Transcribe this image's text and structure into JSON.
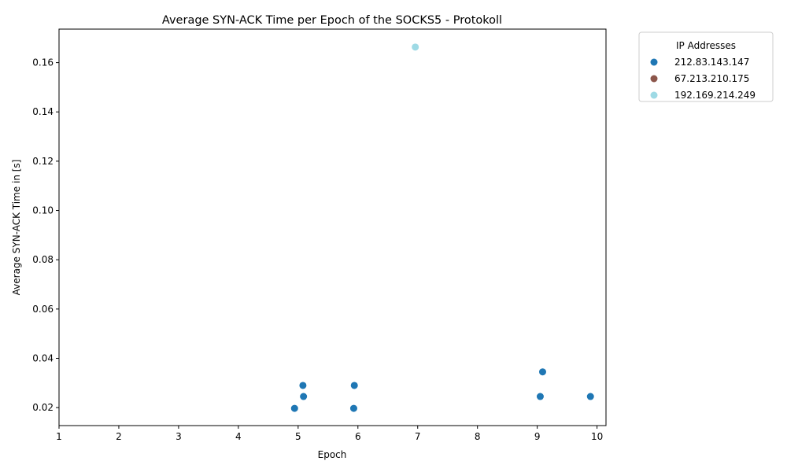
{
  "chart_data": {
    "type": "scatter",
    "title": "Average SYN-ACK Time per Epoch of the SOCKS5 - Protokoll",
    "xlabel": "Epoch",
    "ylabel": "Average SYN-ACK Time in [s]",
    "xlim": [
      1,
      10.15
    ],
    "ylim": [
      0.0127,
      0.1736
    ],
    "xticks": [
      1,
      2,
      3,
      4,
      5,
      6,
      7,
      8,
      9,
      10
    ],
    "yticks": [
      0.02,
      0.04,
      0.06,
      0.08,
      0.1,
      0.12,
      0.14,
      0.16
    ],
    "ytick_labels": [
      "0.02",
      "0.04",
      "0.06",
      "0.08",
      "0.10",
      "0.12",
      "0.14",
      "0.16"
    ],
    "grid": false,
    "legend": {
      "title": "IP Addresses",
      "placement": "outside-top-right"
    },
    "series": [
      {
        "name": "212.83.143.147",
        "color": "#1f77b4",
        "points": [
          {
            "x": 4.94,
            "y": 0.0197
          },
          {
            "x": 5.08,
            "y": 0.029
          },
          {
            "x": 5.09,
            "y": 0.0245
          },
          {
            "x": 5.93,
            "y": 0.0197
          },
          {
            "x": 5.94,
            "y": 0.029
          },
          {
            "x": 9.05,
            "y": 0.0245
          },
          {
            "x": 9.09,
            "y": 0.0345
          },
          {
            "x": 9.89,
            "y": 0.0245
          }
        ]
      },
      {
        "name": "67.213.210.175",
        "color": "#8c564b",
        "points": []
      },
      {
        "name": "192.169.214.249",
        "color": "#9edae5",
        "points": [
          {
            "x": 6.96,
            "y": 0.1663
          }
        ]
      }
    ]
  }
}
